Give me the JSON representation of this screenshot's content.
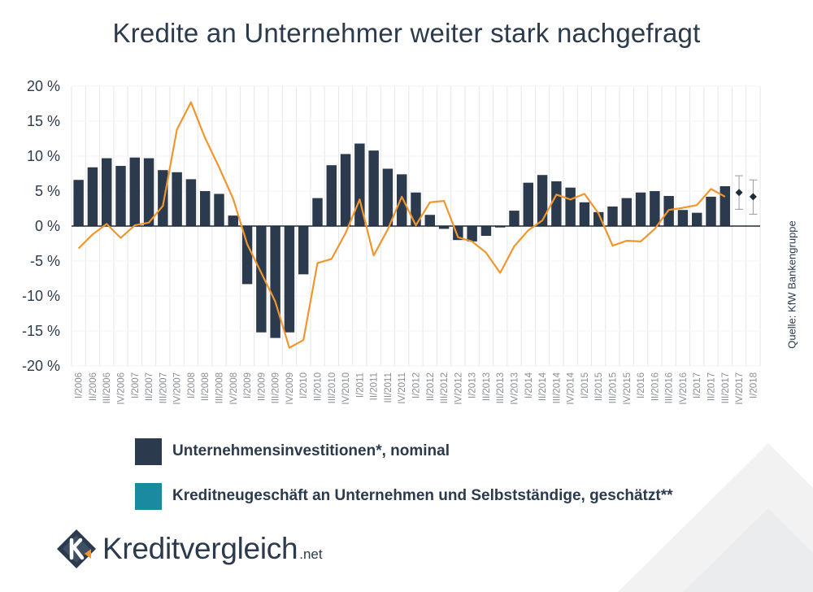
{
  "title": "Kredite an Unternehmer weiter stark nachgefragt",
  "source": "Quelle: KfW Bankengruppe",
  "brand": {
    "name": "Kreditvergleich",
    "tld": ".net"
  },
  "colors": {
    "bars": "#2b3a4c",
    "line": "#f0962e",
    "legend_line_swatch": "#1a8aa0",
    "forecast": "#1e2b3a",
    "grid": "#e6e6e6"
  },
  "legend": [
    {
      "label": "Unternehmensinvestitionen*, nominal",
      "color": "#2b3a4c"
    },
    {
      "label": "Kreditneugeschäft an Unternehmen und Selbstständige, geschätzt**",
      "color": "#1a8aa0"
    }
  ],
  "chart_data": {
    "type": "bar",
    "title": "Kredite an Unternehmer weiter stark nachgefragt",
    "ylim": [
      -20,
      20
    ],
    "yticks": [
      20,
      15,
      10,
      5,
      0,
      -5,
      -10,
      -15,
      -20
    ],
    "ytick_labels": [
      "20 %",
      "15 %",
      "10 %",
      "5 %",
      "0 %",
      "-5 %",
      "-10 %",
      "-15 %",
      "-20 %"
    ],
    "grid": true,
    "legend_position": "bottom",
    "categories": [
      "I/2006",
      "II/2006",
      "III/2006",
      "IV/2006",
      "I/2007",
      "II/2007",
      "III/2007",
      "IV/2007",
      "I/2008",
      "II/2008",
      "III/2008",
      "IV/2008",
      "I/2009",
      "II/2009",
      "III/2009",
      "IV/2009",
      "I/2010",
      "II/2010",
      "III/2010",
      "IV/2010",
      "I/2011",
      "II/2011",
      "III/2011",
      "IV/2011",
      "I/2012",
      "II/2012",
      "III/2012",
      "IV/2012",
      "I/2013",
      "II/2013",
      "III/2013",
      "IV/2013",
      "I/2014",
      "II/2014",
      "III/2014",
      "IV/2014",
      "I/2015",
      "II/2015",
      "III/2015",
      "IV/2015",
      "I/2016",
      "II/2016",
      "III/2016",
      "IV/2016",
      "I/2017",
      "II/2017",
      "III/2017",
      "IV/2017",
      "I/2018"
    ],
    "series": [
      {
        "name": "Unternehmensinvestitionen*, nominal",
        "type": "bar",
        "values": [
          6.6,
          8.4,
          9.7,
          8.6,
          9.8,
          9.7,
          8.0,
          7.7,
          6.7,
          5.0,
          4.6,
          1.5,
          -8.3,
          -15.2,
          -16.0,
          -15.2,
          -6.9,
          4.0,
          8.7,
          10.3,
          11.8,
          10.8,
          8.2,
          7.4,
          4.8,
          1.6,
          -0.4,
          -2.0,
          -2.2,
          -1.4,
          -0.2,
          2.2,
          6.2,
          7.3,
          6.4,
          5.5,
          3.4,
          2.0,
          2.8,
          4.0,
          4.8,
          5.0,
          4.3,
          2.3,
          1.9,
          4.2,
          5.7,
          null,
          null
        ]
      },
      {
        "name": "Kreditneugeschäft an Unternehmen und Selbstständige, geschätzt**",
        "type": "line",
        "values": [
          -3.2,
          -1.2,
          0.3,
          -1.7,
          0.1,
          0.5,
          2.9,
          13.8,
          17.7,
          12.6,
          8.4,
          3.9,
          -2.6,
          -6.7,
          -10.8,
          -17.4,
          -16.3,
          -5.3,
          -4.7,
          -1.0,
          3.8,
          -4.2,
          -0.5,
          4.2,
          0.1,
          3.4,
          3.6,
          -1.6,
          -2.2,
          -3.8,
          -6.7,
          -2.9,
          -0.6,
          0.8,
          4.5,
          3.8,
          4.6,
          1.8,
          -2.8,
          -2.1,
          -2.2,
          -0.4,
          2.3,
          2.6,
          3.0,
          5.3,
          4.2,
          null,
          null
        ]
      },
      {
        "name": "",
        "type": "forecast",
        "values": [
          null,
          null,
          null,
          null,
          null,
          null,
          null,
          null,
          null,
          null,
          null,
          null,
          null,
          null,
          null,
          null,
          null,
          null,
          null,
          null,
          null,
          null,
          null,
          null,
          null,
          null,
          null,
          null,
          null,
          null,
          null,
          null,
          null,
          null,
          null,
          null,
          null,
          null,
          null,
          null,
          null,
          null,
          null,
          null,
          null,
          null,
          null,
          4.8,
          4.2
        ],
        "range": [
          null,
          null,
          null,
          null,
          null,
          null,
          null,
          null,
          null,
          null,
          null,
          null,
          null,
          null,
          null,
          null,
          null,
          null,
          null,
          null,
          null,
          null,
          null,
          null,
          null,
          null,
          null,
          null,
          null,
          null,
          null,
          null,
          null,
          null,
          null,
          null,
          null,
          null,
          null,
          null,
          null,
          null,
          null,
          null,
          null,
          null,
          null,
          [
            2.4,
            7.2
          ],
          [
            1.7,
            6.6
          ]
        ]
      }
    ]
  }
}
